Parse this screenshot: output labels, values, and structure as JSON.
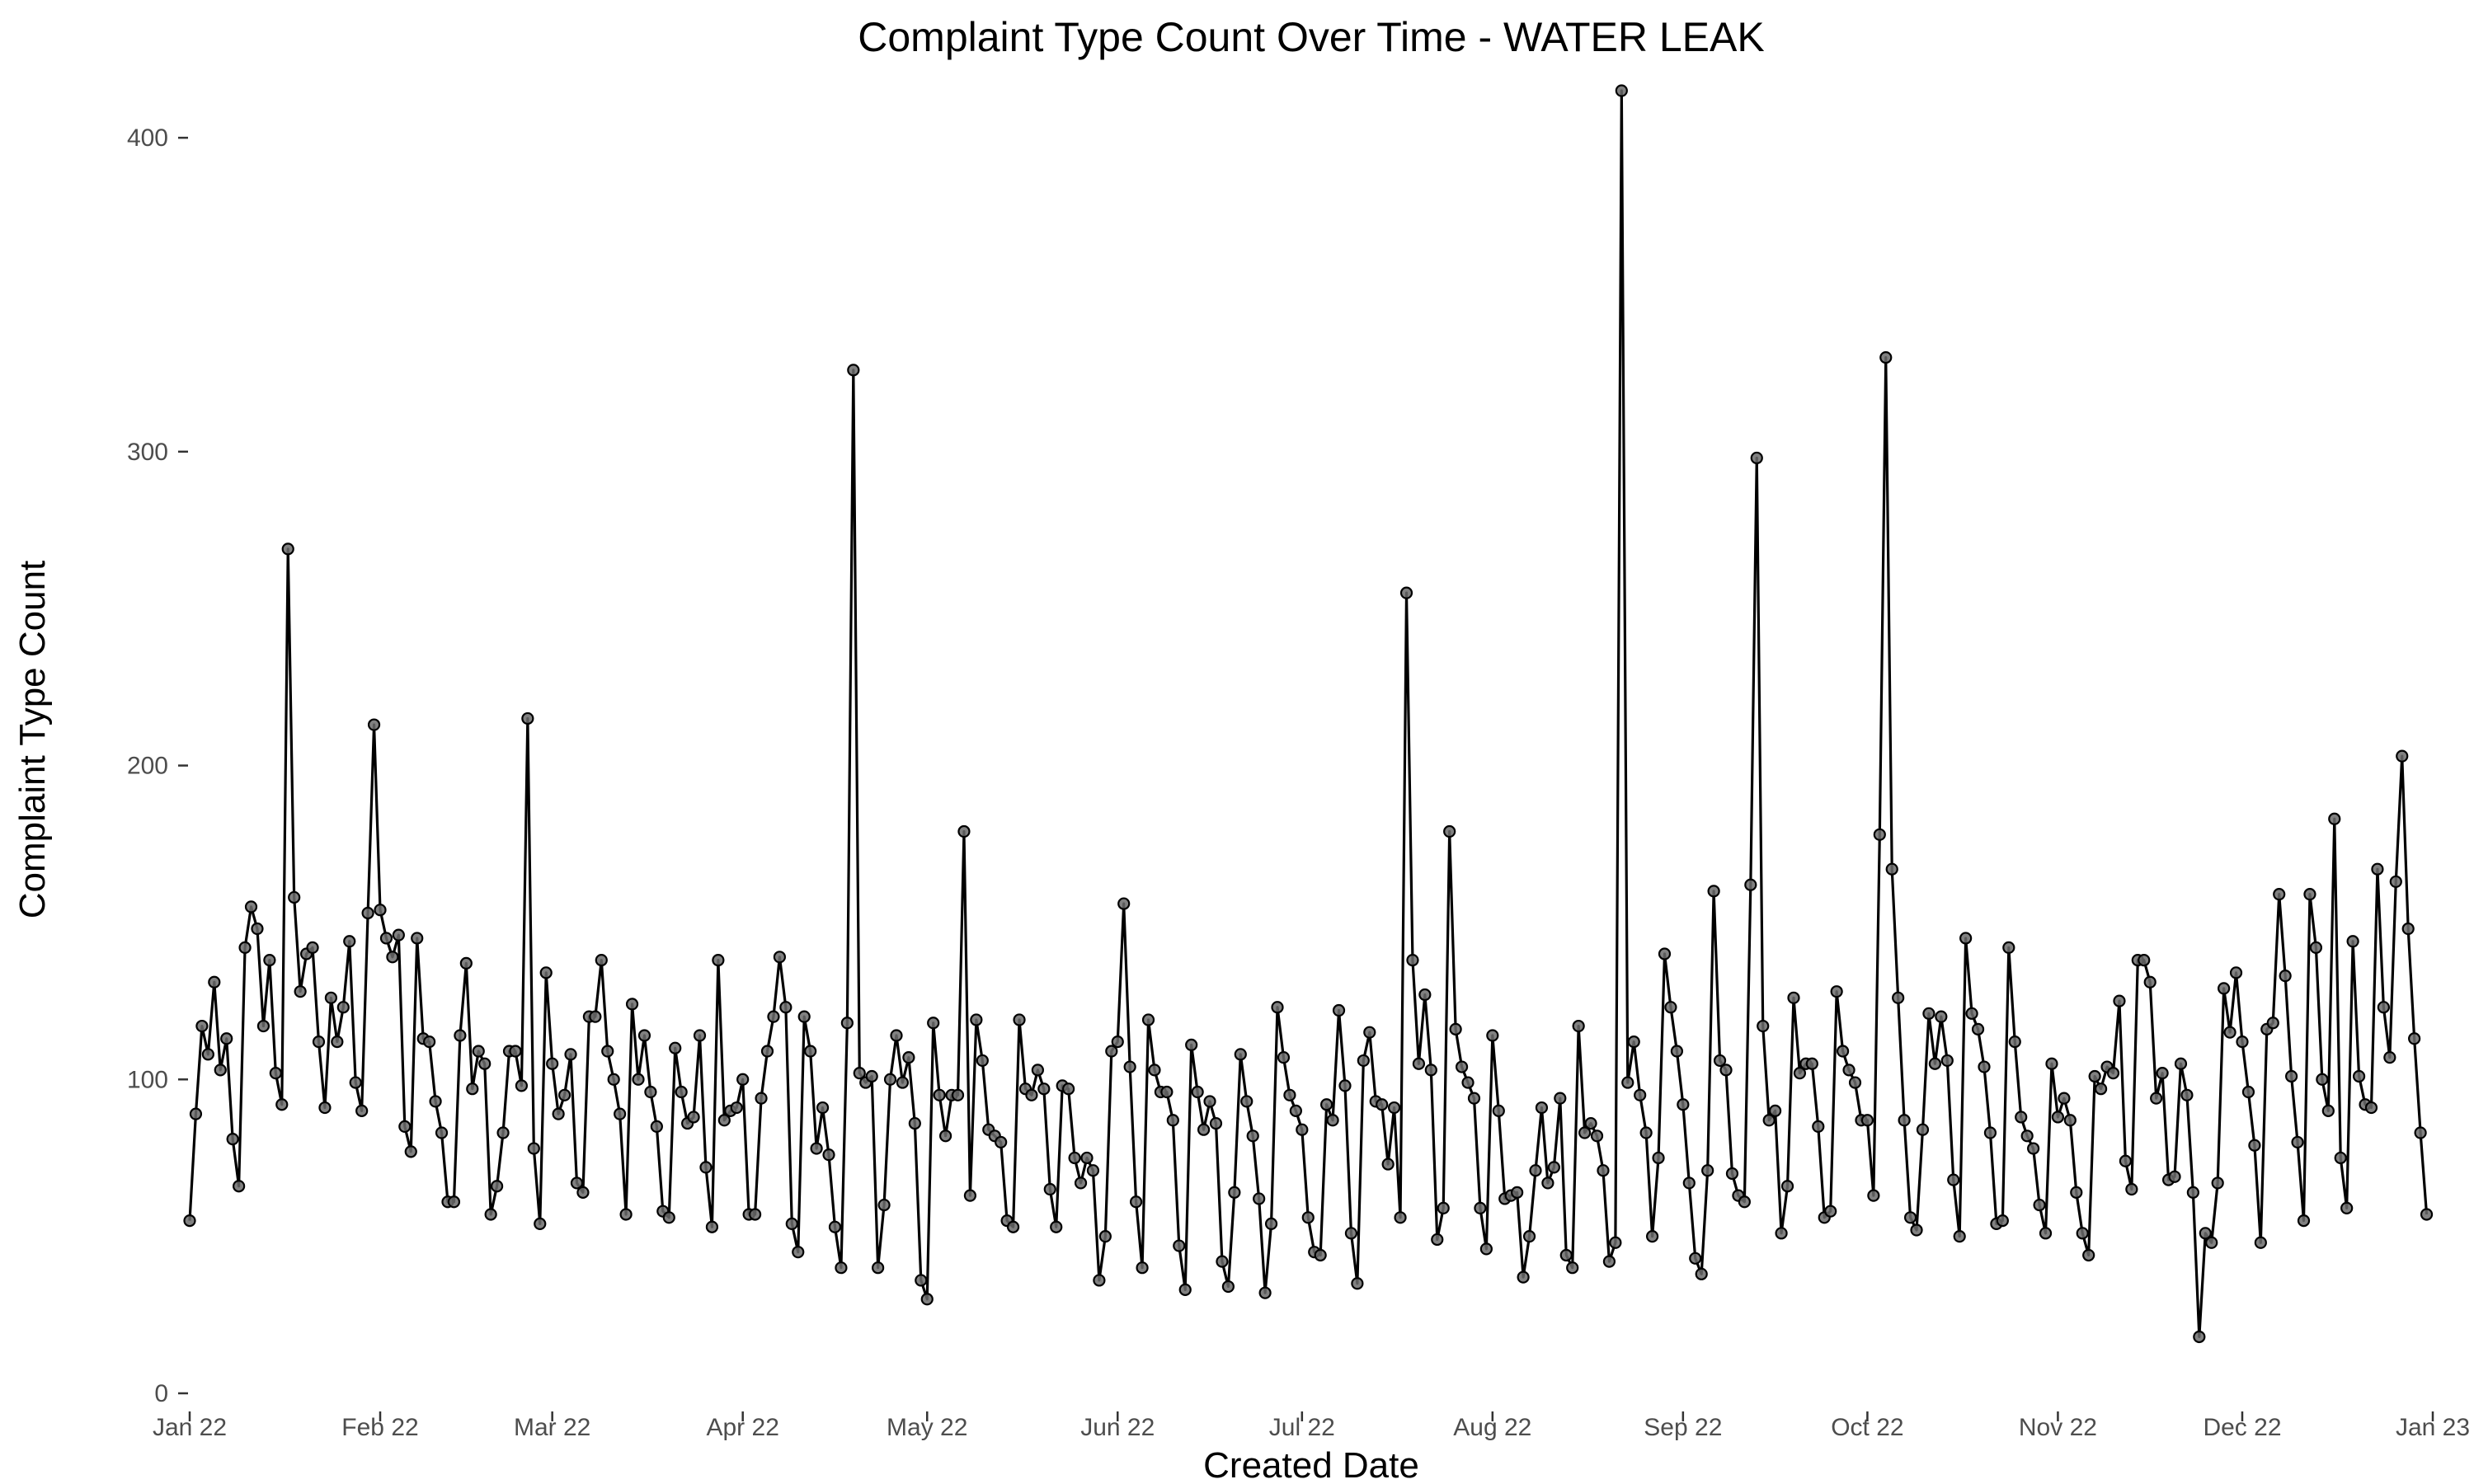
{
  "chart_data": {
    "type": "line",
    "title": "Complaint Type Count Over Time - WATER LEAK",
    "xlabel": "Created Date",
    "ylabel": "Complaint Type Count",
    "x_start": "2022-01-01",
    "x_end": "2022-12-31",
    "xlim": [
      "2022-01-01",
      "2023-01-01"
    ],
    "ylim": [
      0,
      415
    ],
    "y_ticks": [
      0,
      100,
      200,
      300,
      400
    ],
    "x_ticks": [
      {
        "date": "2022-01-01",
        "label": "Jan 22"
      },
      {
        "date": "2022-02-01",
        "label": "Feb 22"
      },
      {
        "date": "2022-03-01",
        "label": "Mar 22"
      },
      {
        "date": "2022-04-01",
        "label": "Apr 22"
      },
      {
        "date": "2022-05-01",
        "label": "May 22"
      },
      {
        "date": "2022-06-01",
        "label": "Jun 22"
      },
      {
        "date": "2022-07-01",
        "label": "Jul 22"
      },
      {
        "date": "2022-08-01",
        "label": "Aug 22"
      },
      {
        "date": "2022-09-01",
        "label": "Sep 22"
      },
      {
        "date": "2022-10-01",
        "label": "Oct 22"
      },
      {
        "date": "2022-11-01",
        "label": "Nov 22"
      },
      {
        "date": "2022-12-01",
        "label": "Dec 22"
      },
      {
        "date": "2023-01-01",
        "label": "Jan 23"
      }
    ],
    "grid": false,
    "legend": "none",
    "colors": {
      "line": "#000000",
      "point_fill": "#6b6b6b",
      "axis_text": "#4d4d4d",
      "tick": "#333333"
    },
    "series": [
      {
        "values": [
          55,
          89,
          117,
          108,
          131,
          103,
          113,
          81,
          66,
          142,
          155,
          148,
          117,
          138,
          102,
          92,
          269,
          158,
          128,
          140,
          142,
          112,
          91,
          126,
          112,
          123,
          144,
          99,
          90,
          153,
          213,
          154,
          145,
          139,
          146,
          85,
          77,
          145,
          113,
          112,
          93,
          83,
          61,
          61,
          114,
          137,
          97,
          109,
          105,
          57,
          66,
          83,
          109,
          109,
          98,
          215,
          78,
          54,
          134,
          105,
          89,
          95,
          108,
          67,
          64,
          120,
          120,
          138,
          109,
          100,
          89,
          57,
          124,
          100,
          114,
          96,
          85,
          58,
          56,
          110,
          96,
          86,
          88,
          114,
          72,
          53,
          138,
          87,
          90,
          91,
          100,
          57,
          57,
          94,
          109,
          120,
          139,
          123,
          54,
          45,
          120,
          109,
          78,
          91,
          76,
          53,
          40,
          118,
          326,
          102,
          99,
          101,
          40,
          60,
          100,
          114,
          99,
          107,
          86,
          36,
          30,
          118,
          95,
          82,
          95,
          95,
          179,
          63,
          119,
          106,
          84,
          82,
          80,
          55,
          53,
          119,
          97,
          95,
          103,
          97,
          65,
          53,
          98,
          97,
          75,
          67,
          75,
          71,
          36,
          50,
          109,
          112,
          156,
          104,
          61,
          40,
          119,
          103,
          96,
          96,
          87,
          47,
          33,
          111,
          96,
          84,
          93,
          86,
          42,
          34,
          64,
          108,
          93,
          82,
          62,
          32,
          54,
          123,
          107,
          95,
          90,
          84,
          56,
          45,
          44,
          92,
          87,
          122,
          98,
          51,
          35,
          106,
          115,
          93,
          92,
          73,
          91,
          56,
          255,
          138,
          105,
          127,
          103,
          49,
          59,
          179,
          116,
          104,
          99,
          94,
          59,
          46,
          114,
          90,
          62,
          63,
          64,
          37,
          50,
          71,
          91,
          67,
          72,
          94,
          44,
          40,
          117,
          83,
          86,
          82,
          71,
          42,
          48,
          415,
          99,
          112,
          95,
          83,
          50,
          75,
          140,
          123,
          109,
          92,
          67,
          43,
          38,
          71,
          160,
          106,
          103,
          70,
          63,
          61,
          162,
          298,
          117,
          87,
          90,
          51,
          66,
          126,
          102,
          105,
          105,
          85,
          56,
          58,
          128,
          109,
          103,
          99,
          87,
          87,
          63,
          178,
          330,
          167,
          126,
          87,
          56,
          52,
          84,
          121,
          105,
          120,
          106,
          68,
          50,
          145,
          121,
          116,
          104,
          83,
          54,
          55,
          142,
          112,
          88,
          82,
          78,
          60,
          51,
          105,
          88,
          94,
          87,
          64,
          51,
          44,
          101,
          97,
          104,
          102,
          125,
          74,
          65,
          138,
          138,
          131,
          94,
          102,
          68,
          69,
          105,
          95,
          64,
          18,
          51,
          48,
          67,
          129,
          115,
          134,
          112,
          96,
          79,
          48,
          116,
          118,
          159,
          133,
          101,
          80,
          55,
          159,
          142,
          100,
          90,
          183,
          75,
          59,
          144,
          101,
          92,
          91,
          167,
          123,
          107,
          163,
          203,
          148,
          113,
          83,
          57
        ]
      }
    ]
  }
}
